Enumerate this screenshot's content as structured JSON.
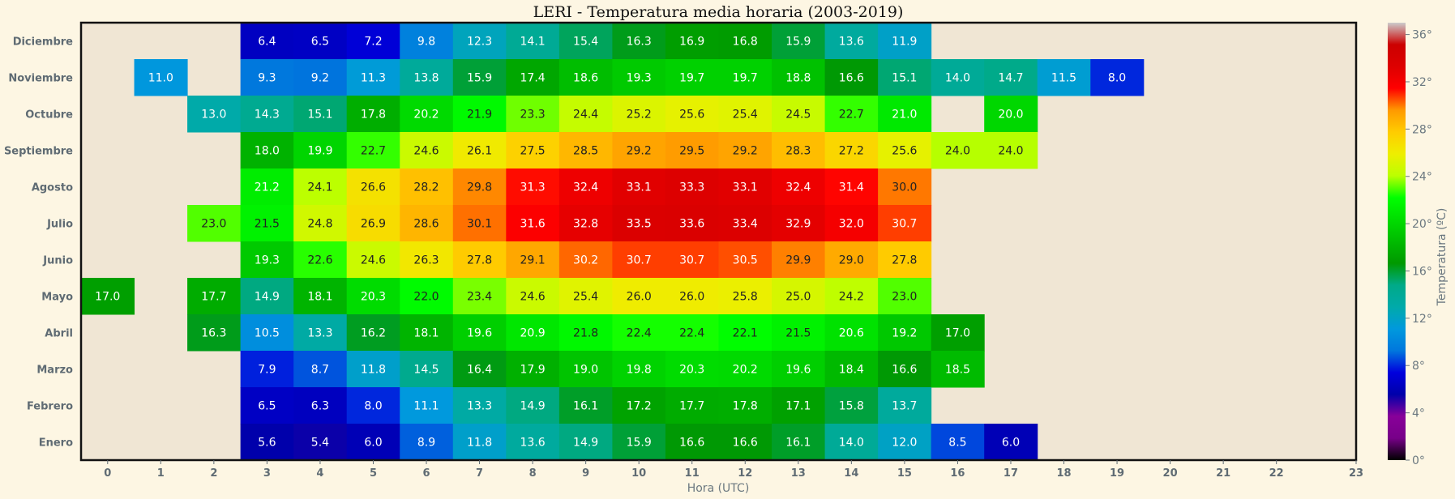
{
  "chart_data": {
    "type": "heatmap",
    "title": "LERI - Temperatura media horaria (2003-2019)",
    "xlabel": "Hora (UTC)",
    "colorbar_label": "Temperatura (ºC)",
    "x": [
      "0",
      "1",
      "2",
      "3",
      "4",
      "5",
      "6",
      "7",
      "8",
      "9",
      "10",
      "11",
      "12",
      "13",
      "14",
      "15",
      "16",
      "17",
      "18",
      "19",
      "20",
      "21",
      "22",
      "23"
    ],
    "y": [
      "Diciembre",
      "Noviembre",
      "Octubre",
      "Septiembre",
      "Agosto",
      "Julio",
      "Junio",
      "Mayo",
      "Abril",
      "Marzo",
      "Febrero",
      "Enero"
    ],
    "values": [
      [
        null,
        null,
        null,
        6.4,
        6.5,
        7.2,
        9.8,
        12.3,
        14.1,
        15.4,
        16.3,
        16.9,
        16.8,
        15.9,
        13.6,
        11.9,
        null,
        null,
        null,
        null,
        null,
        null,
        null,
        null
      ],
      [
        null,
        11.0,
        null,
        9.3,
        9.2,
        11.3,
        13.8,
        15.9,
        17.4,
        18.6,
        19.3,
        19.7,
        19.7,
        18.8,
        16.6,
        15.1,
        14.0,
        14.7,
        11.5,
        8.0,
        null,
        null,
        null,
        null
      ],
      [
        null,
        null,
        13.0,
        14.3,
        15.1,
        17.8,
        20.2,
        21.9,
        23.3,
        24.4,
        25.2,
        25.6,
        25.4,
        24.5,
        22.7,
        21.0,
        null,
        20.0,
        null,
        null,
        null,
        null,
        null,
        null
      ],
      [
        null,
        null,
        null,
        18.0,
        19.9,
        22.7,
        24.6,
        26.1,
        27.5,
        28.5,
        29.2,
        29.5,
        29.2,
        28.3,
        27.2,
        25.6,
        24.0,
        24.0,
        null,
        null,
        null,
        null,
        null,
        null
      ],
      [
        null,
        null,
        null,
        21.2,
        24.1,
        26.6,
        28.2,
        29.8,
        31.3,
        32.4,
        33.1,
        33.3,
        33.1,
        32.4,
        31.4,
        30.0,
        null,
        null,
        null,
        null,
        null,
        null,
        null,
        null
      ],
      [
        null,
        null,
        23.0,
        21.5,
        24.8,
        26.9,
        28.6,
        30.1,
        31.6,
        32.8,
        33.5,
        33.6,
        33.4,
        32.9,
        32.0,
        30.7,
        null,
        null,
        null,
        null,
        null,
        null,
        null,
        null
      ],
      [
        null,
        null,
        null,
        19.3,
        22.6,
        24.6,
        26.3,
        27.8,
        29.1,
        30.2,
        30.7,
        30.7,
        30.5,
        29.9,
        29.0,
        27.8,
        null,
        null,
        null,
        null,
        null,
        null,
        null,
        null
      ],
      [
        17.0,
        null,
        17.7,
        14.9,
        18.1,
        20.3,
        22.0,
        23.4,
        24.6,
        25.4,
        26.0,
        26.0,
        25.8,
        25.0,
        24.2,
        23.0,
        null,
        null,
        null,
        null,
        null,
        null,
        null,
        null
      ],
      [
        null,
        null,
        16.3,
        10.5,
        13.3,
        16.2,
        18.1,
        19.6,
        20.9,
        21.8,
        22.4,
        22.4,
        22.1,
        21.5,
        20.6,
        19.2,
        17.0,
        null,
        null,
        null,
        null,
        null,
        null,
        null
      ],
      [
        null,
        null,
        null,
        7.9,
        8.7,
        11.8,
        14.5,
        16.4,
        17.9,
        19.0,
        19.8,
        20.3,
        20.2,
        19.6,
        18.4,
        16.6,
        18.5,
        null,
        null,
        null,
        null,
        null,
        null,
        null
      ],
      [
        null,
        null,
        null,
        6.5,
        6.3,
        8.0,
        11.1,
        13.3,
        14.9,
        16.1,
        17.2,
        17.7,
        17.8,
        17.1,
        15.8,
        13.7,
        null,
        null,
        null,
        null,
        null,
        null,
        null,
        null
      ],
      [
        null,
        null,
        null,
        5.6,
        5.4,
        6.0,
        8.9,
        11.8,
        13.6,
        14.9,
        15.9,
        16.6,
        16.6,
        16.1,
        14.0,
        12.0,
        8.5,
        6.0,
        null,
        null,
        null,
        null,
        null,
        null
      ]
    ],
    "colorbar_range": [
      0,
      37
    ],
    "colorbar_ticks": [
      0,
      4,
      8,
      12,
      16,
      20,
      24,
      28,
      32,
      36
    ],
    "colorbar_tick_labels": [
      "0°",
      "4°",
      "8°",
      "12°",
      "16°",
      "20°",
      "24°",
      "28°",
      "32°",
      "36°"
    ],
    "colormap": "nipy_spectral",
    "colors": {
      "page_background": "#fdf6e3",
      "plot_background": "#f0e6d4",
      "tick_label": "#5f6b73"
    }
  }
}
